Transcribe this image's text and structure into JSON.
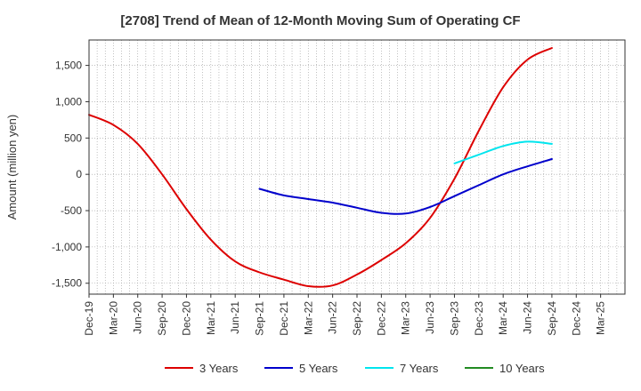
{
  "chart_data": {
    "type": "line",
    "title": "[2708]  Trend of Mean of 12-Month Moving Sum of Operating CF",
    "xlabel": "",
    "ylabel": "Amount (million yen)",
    "ylim": [
      -1650,
      1850
    ],
    "yticks": [
      1500,
      1000,
      500,
      0,
      -500,
      -1000,
      -1500
    ],
    "ytick_labels": [
      "1,500",
      "1,000",
      "500",
      "0",
      "-500",
      "-1,000",
      "-1,500"
    ],
    "categories": [
      "Dec-19",
      "Mar-20",
      "Jun-20",
      "Sep-20",
      "Dec-20",
      "Mar-21",
      "Jun-21",
      "Sep-21",
      "Dec-21",
      "Mar-22",
      "Jun-22",
      "Sep-22",
      "Dec-22",
      "Mar-23",
      "Jun-23",
      "Sep-23",
      "Dec-23",
      "Mar-24",
      "Jun-24",
      "Sep-24",
      "Dec-24",
      "Mar-25"
    ],
    "grid": true,
    "legend_position": "bottom",
    "series": [
      {
        "name": "3 Years",
        "color": "#dd0000",
        "values": [
          820,
          680,
          420,
          0,
          -480,
          -900,
          -1200,
          -1350,
          -1450,
          -1540,
          -1530,
          -1380,
          -1180,
          -950,
          -600,
          -60,
          600,
          1200,
          1580,
          1740,
          null,
          null
        ]
      },
      {
        "name": "5 Years",
        "color": "#0000cc",
        "values": [
          null,
          null,
          null,
          null,
          null,
          null,
          null,
          -200,
          -290,
          -340,
          -390,
          -460,
          -530,
          -540,
          -450,
          -300,
          -150,
          0,
          110,
          210,
          null,
          null
        ]
      },
      {
        "name": "7 Years",
        "color": "#00e5ee",
        "values": [
          null,
          null,
          null,
          null,
          null,
          null,
          null,
          null,
          null,
          null,
          null,
          null,
          null,
          null,
          null,
          150,
          270,
          390,
          450,
          420,
          null,
          null
        ]
      },
      {
        "name": "10 Years",
        "color": "#228b22",
        "values": [
          null,
          null,
          null,
          null,
          null,
          null,
          null,
          null,
          null,
          null,
          null,
          null,
          null,
          null,
          null,
          null,
          null,
          null,
          null,
          null,
          null,
          null
        ]
      }
    ]
  }
}
